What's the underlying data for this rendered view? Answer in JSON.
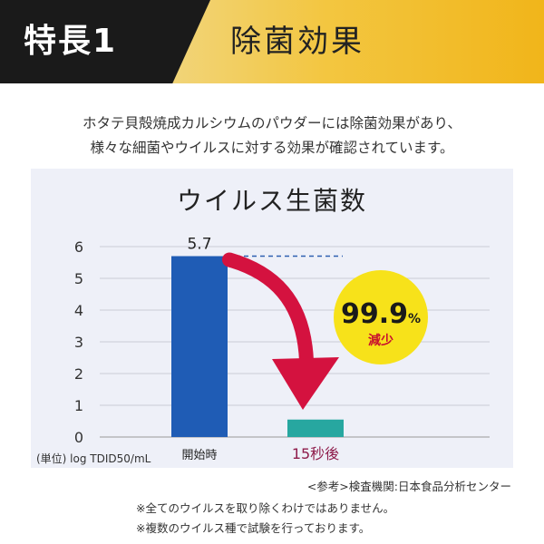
{
  "banner": {
    "label": "特長1",
    "title": "除菌効果"
  },
  "intro": {
    "line1": "ホタテ貝殻焼成カルシウムのパウダーには除菌効果があり、",
    "line2": "様々な細菌やウイルスに対する効果が確認されています。"
  },
  "chart_data": {
    "type": "bar",
    "title": "ウイルス生菌数",
    "categories": [
      "開始時",
      "15秒後"
    ],
    "values": [
      5.7,
      0.55
    ],
    "value_labels": [
      "5.7",
      ""
    ],
    "ylim": [
      0,
      6
    ],
    "yticks": [
      0,
      1,
      2,
      3,
      4,
      5,
      6
    ],
    "ylabel": "(単位) log TDID50/mL",
    "grid": true,
    "badge": {
      "value": "99.9",
      "unit": "%",
      "label": "減少"
    },
    "colors": {
      "bar1": "#1f5cb5",
      "bar2": "#27a7a0",
      "arrow": "#d4123f",
      "badge": "#f7e21a",
      "grid": "#c9ccd6",
      "dash": "#2f5fb0",
      "category2": "#8e1b4a"
    }
  },
  "footer": {
    "source": "<参考>検査機関:日本食品分析センター",
    "note1": "※全てのウイルスを取り除くわけではありません。",
    "note2": "※複数のウイルス種で試験を行っております。"
  }
}
